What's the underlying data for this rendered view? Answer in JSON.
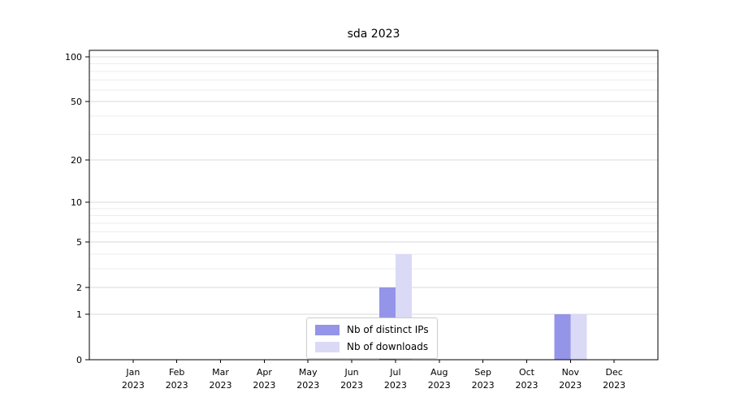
{
  "chart_data": {
    "type": "bar",
    "title": "sda 2023",
    "year_label": "2023",
    "categories": [
      "Jan",
      "Feb",
      "Mar",
      "Apr",
      "May",
      "Jun",
      "Jul",
      "Aug",
      "Sep",
      "Oct",
      "Nov",
      "Dec"
    ],
    "series": [
      {
        "name": "Nb of distinct IPs",
        "color": "#9494e8",
        "values": [
          0,
          0,
          0,
          0,
          0,
          0,
          2,
          0,
          0,
          0,
          1,
          0
        ]
      },
      {
        "name": "Nb of downloads",
        "color": "#dadaf6",
        "values": [
          0,
          0,
          0,
          0,
          0,
          0,
          4,
          0,
          0,
          0,
          1,
          0
        ]
      }
    ],
    "y_ticks": [
      0,
      1,
      2,
      5,
      10,
      20,
      50,
      100
    ],
    "y_minor_ticks": [
      3,
      4,
      6,
      7,
      8,
      9,
      30,
      40,
      60,
      70,
      80,
      90
    ],
    "y_scale": "log1p",
    "ylim": [
      0,
      111
    ],
    "xlabel": "",
    "ylabel": "",
    "grid": "horizontal",
    "legend_position": "bottom-center",
    "colors": {
      "axis": "#000000",
      "major_grid": "#d9d9d9",
      "minor_grid": "#ececec",
      "background": "#ffffff"
    }
  }
}
